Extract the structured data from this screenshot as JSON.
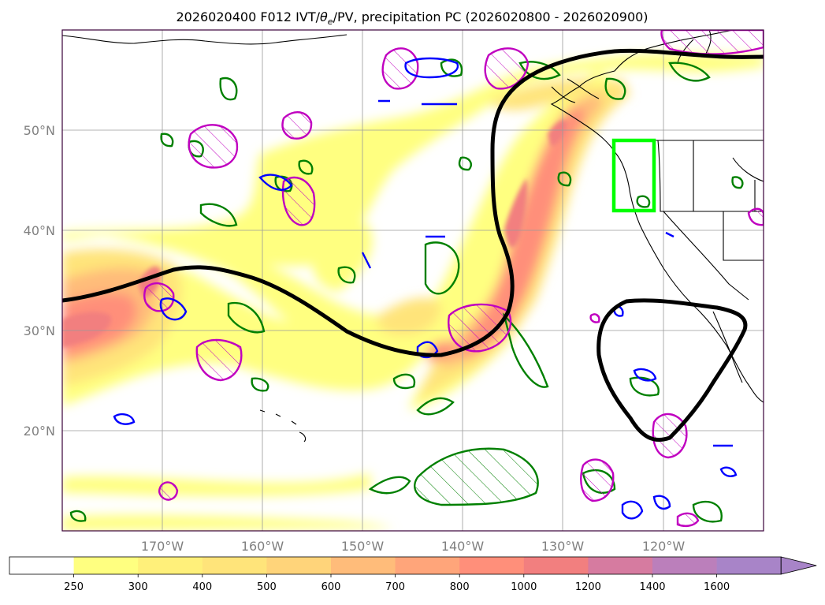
{
  "figure": {
    "title_prefix": "2026020400 F012 IVT/",
    "title_theta": "θ",
    "title_sub": "e",
    "title_suffix": "/PV, precipitation PC (2026020800 - 2026020900)"
  },
  "map": {
    "lon_range": [
      -180,
      -110
    ],
    "lat_range": [
      10,
      60
    ],
    "lon_ticks": [
      "170°W",
      "160°W",
      "150°W",
      "140°W",
      "130°W",
      "120°W"
    ],
    "lat_ticks": [
      "50°N",
      "40°N",
      "30°N",
      "20°N"
    ],
    "grid": true,
    "fill_variable": "IVT",
    "highlight_box": {
      "lon": [
        -125,
        -121
      ],
      "lat": [
        42,
        49
      ],
      "color": "#00ff00"
    }
  },
  "colorbar": {
    "levels": [
      "250",
      "300",
      "400",
      "500",
      "600",
      "700",
      "800",
      "1000",
      "1200",
      "1400",
      "1600"
    ],
    "colors": [
      "#ffffff",
      "#ffff80",
      "#fff07a",
      "#ffe47a",
      "#ffd47a",
      "#ffbc7a",
      "#ffa57a",
      "#ff8f7a",
      "#f27f7f",
      "#d67ba0",
      "#bb7fbb",
      "#a884c8"
    ],
    "extend": "max"
  },
  "colors": {
    "theta_contour": "#008000",
    "pv_positive": "#c000c0",
    "pv_negative": "#0000ff",
    "jet_line": "#000000"
  }
}
